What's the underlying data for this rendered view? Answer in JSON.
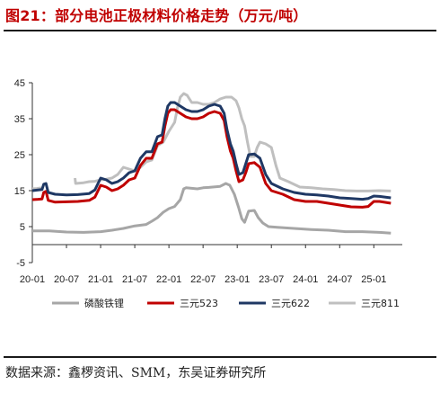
{
  "header": {
    "title": "图21：部分电池正极材料价格走势（万元/吨）"
  },
  "footer": {
    "source": "数据来源：鑫椤资讯、SMM，东吴证券研究所"
  },
  "chart_data": {
    "type": "line",
    "title": "部分电池正极材料价格走势（万元/吨）",
    "xlabel": "",
    "ylabel": "",
    "ylim": [
      -5,
      45
    ],
    "yticks": [
      "45",
      "35",
      "25",
      "15",
      "5",
      "-5"
    ],
    "xticks": [
      "20-01",
      "20-07",
      "21-01",
      "21-07",
      "22-01",
      "22-07",
      "23-01",
      "23-07",
      "24-01",
      "24-07",
      "25-01"
    ],
    "xlim": [
      0,
      65
    ],
    "grid": false,
    "legend": "bottom",
    "series": [
      {
        "name": "磷酸铁锂",
        "color": "#a6a6a6",
        "points": [
          [
            0,
            3.8
          ],
          [
            3,
            3.8
          ],
          [
            6,
            3.5
          ],
          [
            9,
            3.4
          ],
          [
            12,
            3.6
          ],
          [
            14,
            4.0
          ],
          [
            16,
            4.5
          ],
          [
            18,
            5.2
          ],
          [
            20,
            5.6
          ],
          [
            21,
            6.5
          ],
          [
            22,
            7.5
          ],
          [
            23,
            9.0
          ],
          [
            24,
            10.0
          ],
          [
            25,
            10.6
          ],
          [
            26,
            12.5
          ],
          [
            26.6,
            15.5
          ],
          [
            27,
            15.8
          ],
          [
            29,
            15.5
          ],
          [
            30,
            15.8
          ],
          [
            31,
            15.9
          ],
          [
            33,
            16.2
          ],
          [
            34,
            17.0
          ],
          [
            34.7,
            16.5
          ],
          [
            35.5,
            14.0
          ],
          [
            36.2,
            10.5
          ],
          [
            36.8,
            7.2
          ],
          [
            37.3,
            6.2
          ],
          [
            38,
            9.3
          ],
          [
            39,
            9.5
          ],
          [
            39.7,
            7.5
          ],
          [
            40.5,
            6.0
          ],
          [
            41.5,
            5.0
          ],
          [
            43,
            4.8
          ],
          [
            46,
            4.5
          ],
          [
            49,
            4.2
          ],
          [
            52,
            4.0
          ],
          [
            55,
            3.6
          ],
          [
            58,
            3.6
          ],
          [
            61,
            3.4
          ],
          [
            63,
            3.2
          ]
        ]
      },
      {
        "name": "三元523",
        "color": "#c00000",
        "points": [
          [
            0,
            12.5
          ],
          [
            1,
            12.6
          ],
          [
            1.7,
            12.7
          ],
          [
            2,
            14.5
          ],
          [
            2.4,
            14.8
          ],
          [
            2.8,
            12.3
          ],
          [
            4,
            11.8
          ],
          [
            6,
            11.9
          ],
          [
            8,
            12.0
          ],
          [
            10,
            12.3
          ],
          [
            11,
            13.2
          ],
          [
            12,
            16.5
          ],
          [
            13,
            16.0
          ],
          [
            14,
            15.0
          ],
          [
            15,
            15.5
          ],
          [
            16,
            16.5
          ],
          [
            17,
            18.0
          ],
          [
            18,
            18.5
          ],
          [
            19,
            22.0
          ],
          [
            20,
            24.0
          ],
          [
            21,
            24.0
          ],
          [
            22,
            28.0
          ],
          [
            22.8,
            28.5
          ],
          [
            23.3,
            33.0
          ],
          [
            23.8,
            36.5
          ],
          [
            24.3,
            37.5
          ],
          [
            25,
            37.5
          ],
          [
            26,
            36.5
          ],
          [
            27,
            35.5
          ],
          [
            28,
            35.0
          ],
          [
            29,
            35.0
          ],
          [
            30,
            35.5
          ],
          [
            31,
            36.5
          ],
          [
            32,
            37.0
          ],
          [
            33,
            36.5
          ],
          [
            33.7,
            34.5
          ],
          [
            34.2,
            30.0
          ],
          [
            34.8,
            26.0
          ],
          [
            35.3,
            24.0
          ],
          [
            35.8,
            20.5
          ],
          [
            36.3,
            17.5
          ],
          [
            37,
            18.0
          ],
          [
            37.5,
            20.0
          ],
          [
            38,
            22.5
          ],
          [
            39,
            22.8
          ],
          [
            40,
            21.5
          ],
          [
            41,
            17.0
          ],
          [
            42,
            15.0
          ],
          [
            44,
            14.0
          ],
          [
            46,
            12.5
          ],
          [
            48,
            12.0
          ],
          [
            50,
            12.0
          ],
          [
            52,
            11.5
          ],
          [
            54,
            11.0
          ],
          [
            56,
            10.5
          ],
          [
            58,
            10.4
          ],
          [
            59,
            10.6
          ],
          [
            60,
            12.0
          ],
          [
            61,
            12.0
          ],
          [
            63,
            11.5
          ]
        ]
      },
      {
        "name": "三元622",
        "color": "#1f3864",
        "points": [
          [
            0,
            15.0
          ],
          [
            1,
            15.2
          ],
          [
            1.7,
            15.3
          ],
          [
            2,
            16.8
          ],
          [
            2.4,
            17.0
          ],
          [
            2.8,
            14.5
          ],
          [
            4,
            14.0
          ],
          [
            6,
            13.8
          ],
          [
            8,
            13.9
          ],
          [
            10,
            14.2
          ],
          [
            11,
            15.2
          ],
          [
            12,
            18.5
          ],
          [
            13,
            18.0
          ],
          [
            14,
            17.0
          ],
          [
            15,
            17.5
          ],
          [
            16,
            18.5
          ],
          [
            17,
            20.0
          ],
          [
            18,
            20.5
          ],
          [
            19,
            24.0
          ],
          [
            20,
            25.8
          ],
          [
            21,
            25.8
          ],
          [
            22,
            30.0
          ],
          [
            22.8,
            30.5
          ],
          [
            23.3,
            35.0
          ],
          [
            23.8,
            38.5
          ],
          [
            24.3,
            39.5
          ],
          [
            25,
            39.5
          ],
          [
            26,
            38.5
          ],
          [
            27,
            37.5
          ],
          [
            28,
            37.0
          ],
          [
            29,
            37.0
          ],
          [
            30,
            37.5
          ],
          [
            31,
            38.5
          ],
          [
            32,
            39.0
          ],
          [
            33,
            38.5
          ],
          [
            33.7,
            36.5
          ],
          [
            34.2,
            32.0
          ],
          [
            34.8,
            28.0
          ],
          [
            35.3,
            26.0
          ],
          [
            35.8,
            22.5
          ],
          [
            36.3,
            19.5
          ],
          [
            37,
            20.0
          ],
          [
            37.5,
            22.5
          ],
          [
            38,
            25.0
          ],
          [
            39,
            25.2
          ],
          [
            40,
            24.0
          ],
          [
            41,
            19.5
          ],
          [
            42,
            17.0
          ],
          [
            44,
            15.5
          ],
          [
            46,
            14.5
          ],
          [
            48,
            14.0
          ],
          [
            50,
            13.8
          ],
          [
            52,
            13.5
          ],
          [
            54,
            13.0
          ],
          [
            56,
            12.8
          ],
          [
            58,
            12.6
          ],
          [
            59,
            12.8
          ],
          [
            60,
            13.5
          ],
          [
            61,
            13.4
          ],
          [
            63,
            13.0
          ]
        ]
      },
      {
        "name": "三元811",
        "color": "#bfbfbf",
        "segments": [
          [
            [
              0,
              15.5
            ],
            [
              0.8,
              15.6
            ],
            [
              1.6,
              15.8
            ]
          ],
          [
            [
              7.5,
              18.5
            ],
            [
              7.6,
              17.0
            ],
            [
              9,
              17.2
            ],
            [
              10,
              17.5
            ],
            [
              11,
              17.6
            ],
            [
              12,
              18.0
            ],
            [
              13,
              18.2
            ],
            [
              14,
              18.5
            ],
            [
              15,
              19.5
            ],
            [
              16,
              21.5
            ],
            [
              17,
              21.0
            ],
            [
              18,
              20.5
            ],
            [
              19,
              21.5
            ],
            [
              20,
              23.0
            ],
            [
              21,
              23.5
            ],
            [
              22,
              27.5
            ],
            [
              23,
              28.5
            ],
            [
              24,
              31.5
            ],
            [
              25,
              34.0
            ],
            [
              25.5,
              38.0
            ],
            [
              26,
              41.0
            ],
            [
              26.6,
              42.0
            ],
            [
              27.2,
              41.5
            ],
            [
              28,
              39.5
            ],
            [
              29,
              39.5
            ],
            [
              30,
              39.0
            ],
            [
              31,
              39.0
            ],
            [
              32,
              39.5
            ],
            [
              33,
              40.5
            ],
            [
              34,
              41.0
            ],
            [
              35,
              41.0
            ],
            [
              35.8,
              40.0
            ],
            [
              36.3,
              38.0
            ],
            [
              36.8,
              35.0
            ],
            [
              37.3,
              33.0
            ],
            [
              37.8,
              28.5
            ],
            [
              38.3,
              24.5
            ],
            [
              39,
              24.5
            ],
            [
              39.5,
              27.0
            ],
            [
              40,
              28.5
            ],
            [
              41,
              28.0
            ],
            [
              42,
              27.0
            ],
            [
              42.8,
              22.0
            ],
            [
              43.5,
              18.5
            ],
            [
              45,
              17.5
            ],
            [
              47,
              16.0
            ],
            [
              49,
              15.8
            ],
            [
              51,
              15.5
            ],
            [
              53,
              15.3
            ],
            [
              55,
              15.0
            ],
            [
              57,
              14.9
            ],
            [
              59,
              14.9
            ],
            [
              61,
              15.0
            ],
            [
              63,
              14.9
            ]
          ]
        ]
      }
    ]
  }
}
